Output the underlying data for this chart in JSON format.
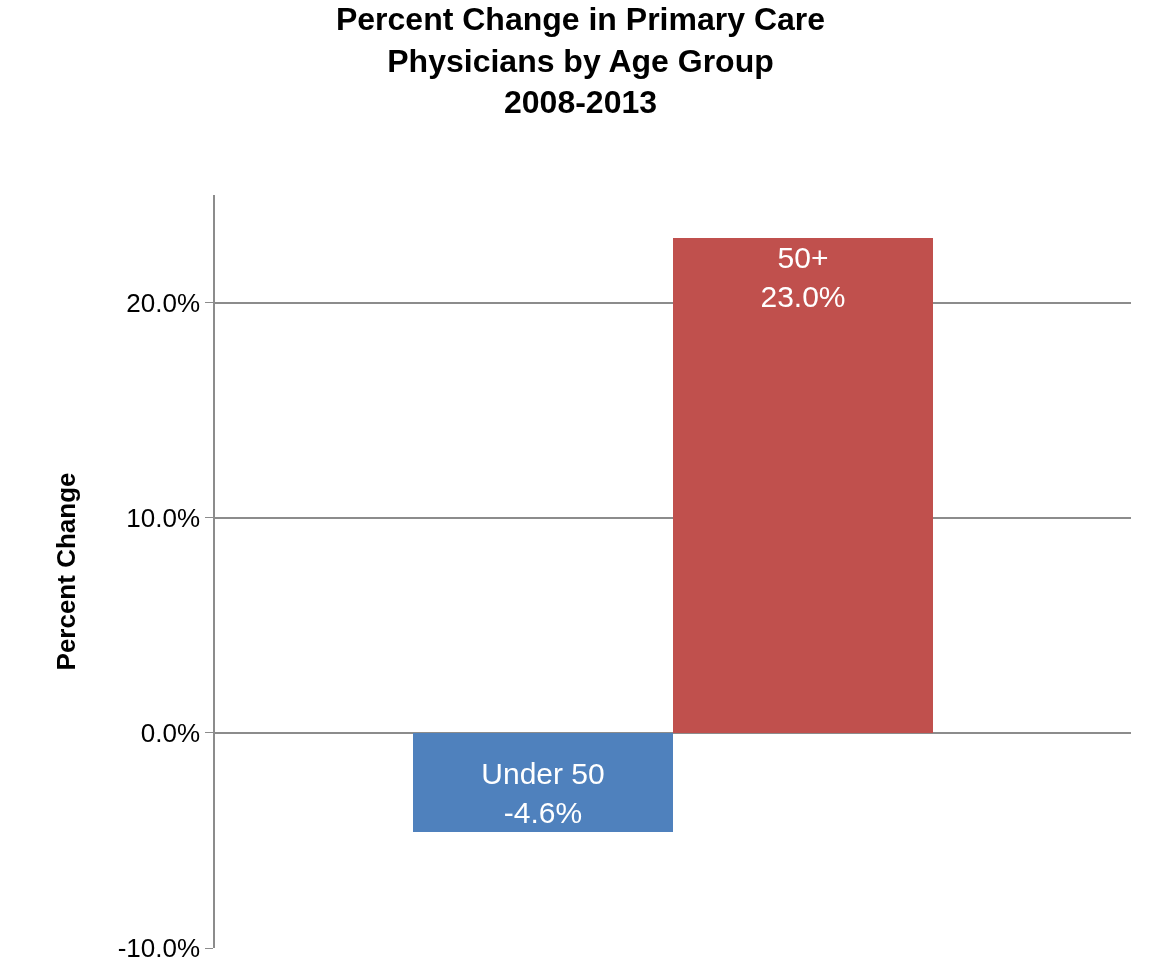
{
  "chart_data": {
    "type": "bar",
    "title": "Percent Change in Primary Care\nPhysicians by Age Group\n2008-2013",
    "ylabel": "Percent Change",
    "categories": [
      "Under 50",
      "50+"
    ],
    "values": [
      -4.6,
      23.0
    ],
    "value_labels": [
      "-4.6%",
      "23.0%"
    ],
    "colors": [
      "#4f81bd",
      "#c0504d"
    ],
    "ylim": [
      -10,
      25
    ],
    "yticks": [
      {
        "value": -10,
        "label": "-10.0%"
      },
      {
        "value": 0,
        "label": "0.0%"
      },
      {
        "value": 10,
        "label": "10.0%"
      },
      {
        "value": 20,
        "label": "20.0%"
      }
    ],
    "grid": "y",
    "tick_labels": "y"
  }
}
